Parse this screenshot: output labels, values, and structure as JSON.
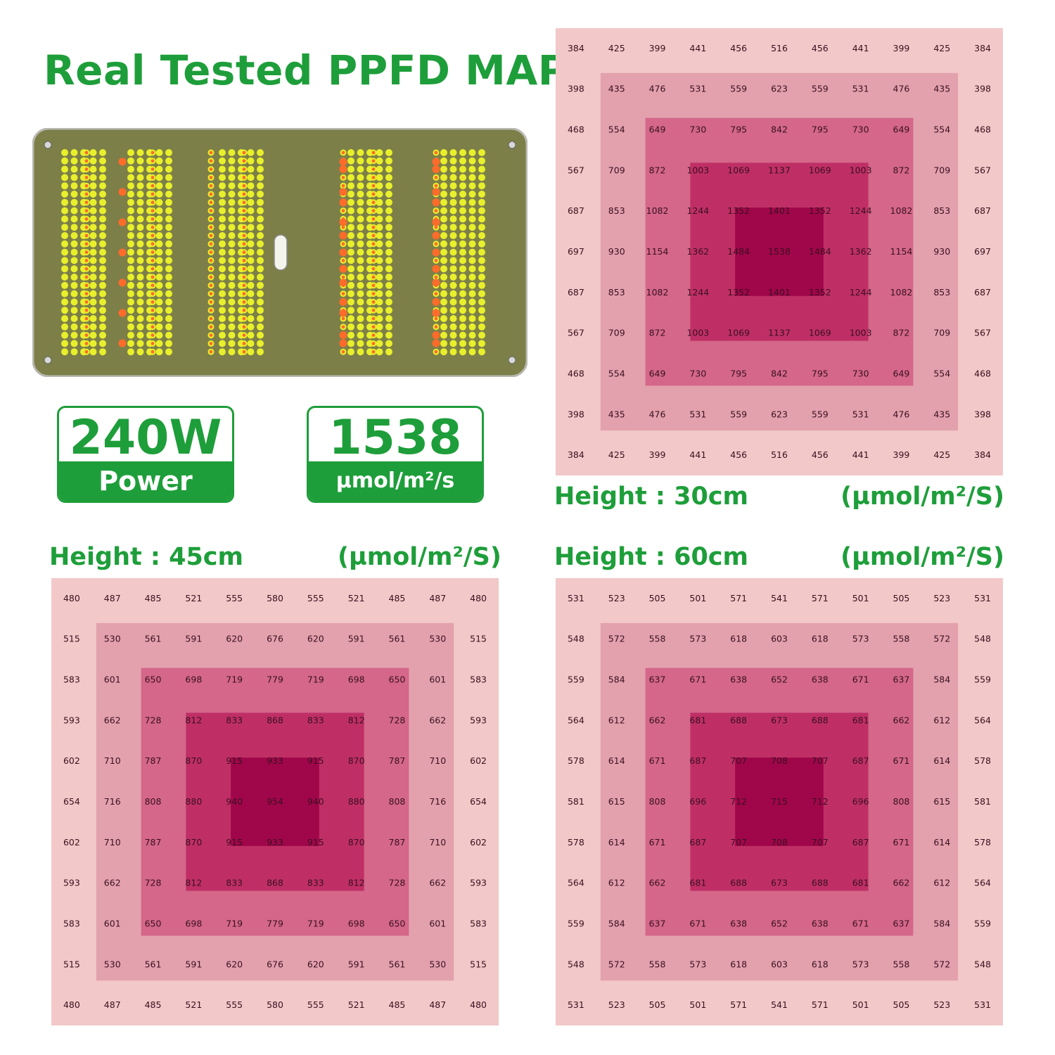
{
  "title": "Real Tested PPFD MAP",
  "badges": {
    "power": {
      "value": "240W",
      "label": "Power"
    },
    "ppfd": {
      "value": "1538",
      "label": "µmol/m²/s"
    }
  },
  "colors": {
    "brand_green": "#1e9e3a",
    "level1": "#f2c8c8",
    "level2": "#e3a1ad",
    "level3": "#d4678a",
    "level4": "#bf2f65",
    "level5": "#a0064a",
    "board": "#7d7f48",
    "led_yellow": "#e8ef2c",
    "led_red": "#ff6b2a"
  },
  "chart_data": [
    {
      "type": "heatmap",
      "heading": "Height : 30cm",
      "unit": "(µmol/m²/S)",
      "rows": [
        [
          384,
          425,
          399,
          441,
          456,
          516,
          456,
          441,
          399,
          425,
          384
        ],
        [
          398,
          435,
          476,
          531,
          559,
          623,
          559,
          531,
          476,
          435,
          398
        ],
        [
          468,
          554,
          649,
          730,
          795,
          842,
          795,
          730,
          649,
          554,
          468
        ],
        [
          567,
          709,
          872,
          1003,
          1069,
          1137,
          1069,
          1003,
          872,
          709,
          567
        ],
        [
          687,
          853,
          1082,
          1244,
          1352,
          1401,
          1352,
          1244,
          1082,
          853,
          687
        ],
        [
          697,
          930,
          1154,
          1362,
          1484,
          1538,
          1484,
          1362,
          1154,
          930,
          697
        ],
        [
          687,
          853,
          1082,
          1244,
          1352,
          1401,
          1352,
          1244,
          1082,
          853,
          687
        ],
        [
          567,
          709,
          872,
          1003,
          1069,
          1137,
          1069,
          1003,
          872,
          709,
          567
        ],
        [
          468,
          554,
          649,
          730,
          795,
          842,
          795,
          730,
          649,
          554,
          468
        ],
        [
          398,
          435,
          476,
          531,
          559,
          623,
          559,
          531,
          476,
          435,
          398
        ],
        [
          384,
          425,
          399,
          441,
          456,
          516,
          456,
          441,
          399,
          425,
          384
        ]
      ]
    },
    {
      "type": "heatmap",
      "heading": "Height : 45cm",
      "unit": "(µmol/m²/S)",
      "rows": [
        [
          480,
          487,
          485,
          521,
          555,
          580,
          555,
          521,
          485,
          487,
          480
        ],
        [
          515,
          530,
          561,
          591,
          620,
          676,
          620,
          591,
          561,
          530,
          515
        ],
        [
          583,
          601,
          650,
          698,
          719,
          779,
          719,
          698,
          650,
          601,
          583
        ],
        [
          593,
          662,
          728,
          812,
          833,
          868,
          833,
          812,
          728,
          662,
          593
        ],
        [
          602,
          710,
          787,
          870,
          915,
          933,
          915,
          870,
          787,
          710,
          602
        ],
        [
          654,
          716,
          808,
          880,
          940,
          954,
          940,
          880,
          808,
          716,
          654
        ],
        [
          602,
          710,
          787,
          870,
          915,
          933,
          915,
          870,
          787,
          710,
          602
        ],
        [
          593,
          662,
          728,
          812,
          833,
          868,
          833,
          812,
          728,
          662,
          593
        ],
        [
          583,
          601,
          650,
          698,
          719,
          779,
          719,
          698,
          650,
          601,
          583
        ],
        [
          515,
          530,
          561,
          591,
          620,
          676,
          620,
          591,
          561,
          530,
          515
        ],
        [
          480,
          487,
          485,
          521,
          555,
          580,
          555,
          521,
          485,
          487,
          480
        ]
      ]
    },
    {
      "type": "heatmap",
      "heading": "Height : 60cm",
      "unit": "(µmol/m²/S)",
      "rows": [
        [
          531,
          523,
          505,
          501,
          571,
          541,
          571,
          501,
          505,
          523,
          531
        ],
        [
          548,
          572,
          558,
          573,
          618,
          603,
          618,
          573,
          558,
          572,
          548
        ],
        [
          559,
          584,
          637,
          671,
          638,
          652,
          638,
          671,
          637,
          584,
          559
        ],
        [
          564,
          612,
          662,
          681,
          688,
          673,
          688,
          681,
          662,
          612,
          564
        ],
        [
          578,
          614,
          671,
          687,
          707,
          708,
          707,
          687,
          671,
          614,
          578
        ],
        [
          581,
          615,
          808,
          696,
          712,
          715,
          712,
          696,
          808,
          615,
          581
        ],
        [
          578,
          614,
          671,
          687,
          707,
          708,
          707,
          687,
          671,
          614,
          578
        ],
        [
          564,
          612,
          662,
          681,
          688,
          673,
          688,
          681,
          662,
          612,
          564
        ],
        [
          559,
          584,
          637,
          671,
          638,
          652,
          638,
          671,
          637,
          584,
          559
        ],
        [
          548,
          572,
          558,
          573,
          618,
          603,
          618,
          573,
          558,
          572,
          548
        ],
        [
          531,
          523,
          505,
          501,
          571,
          541,
          571,
          501,
          505,
          523,
          531
        ]
      ]
    }
  ]
}
